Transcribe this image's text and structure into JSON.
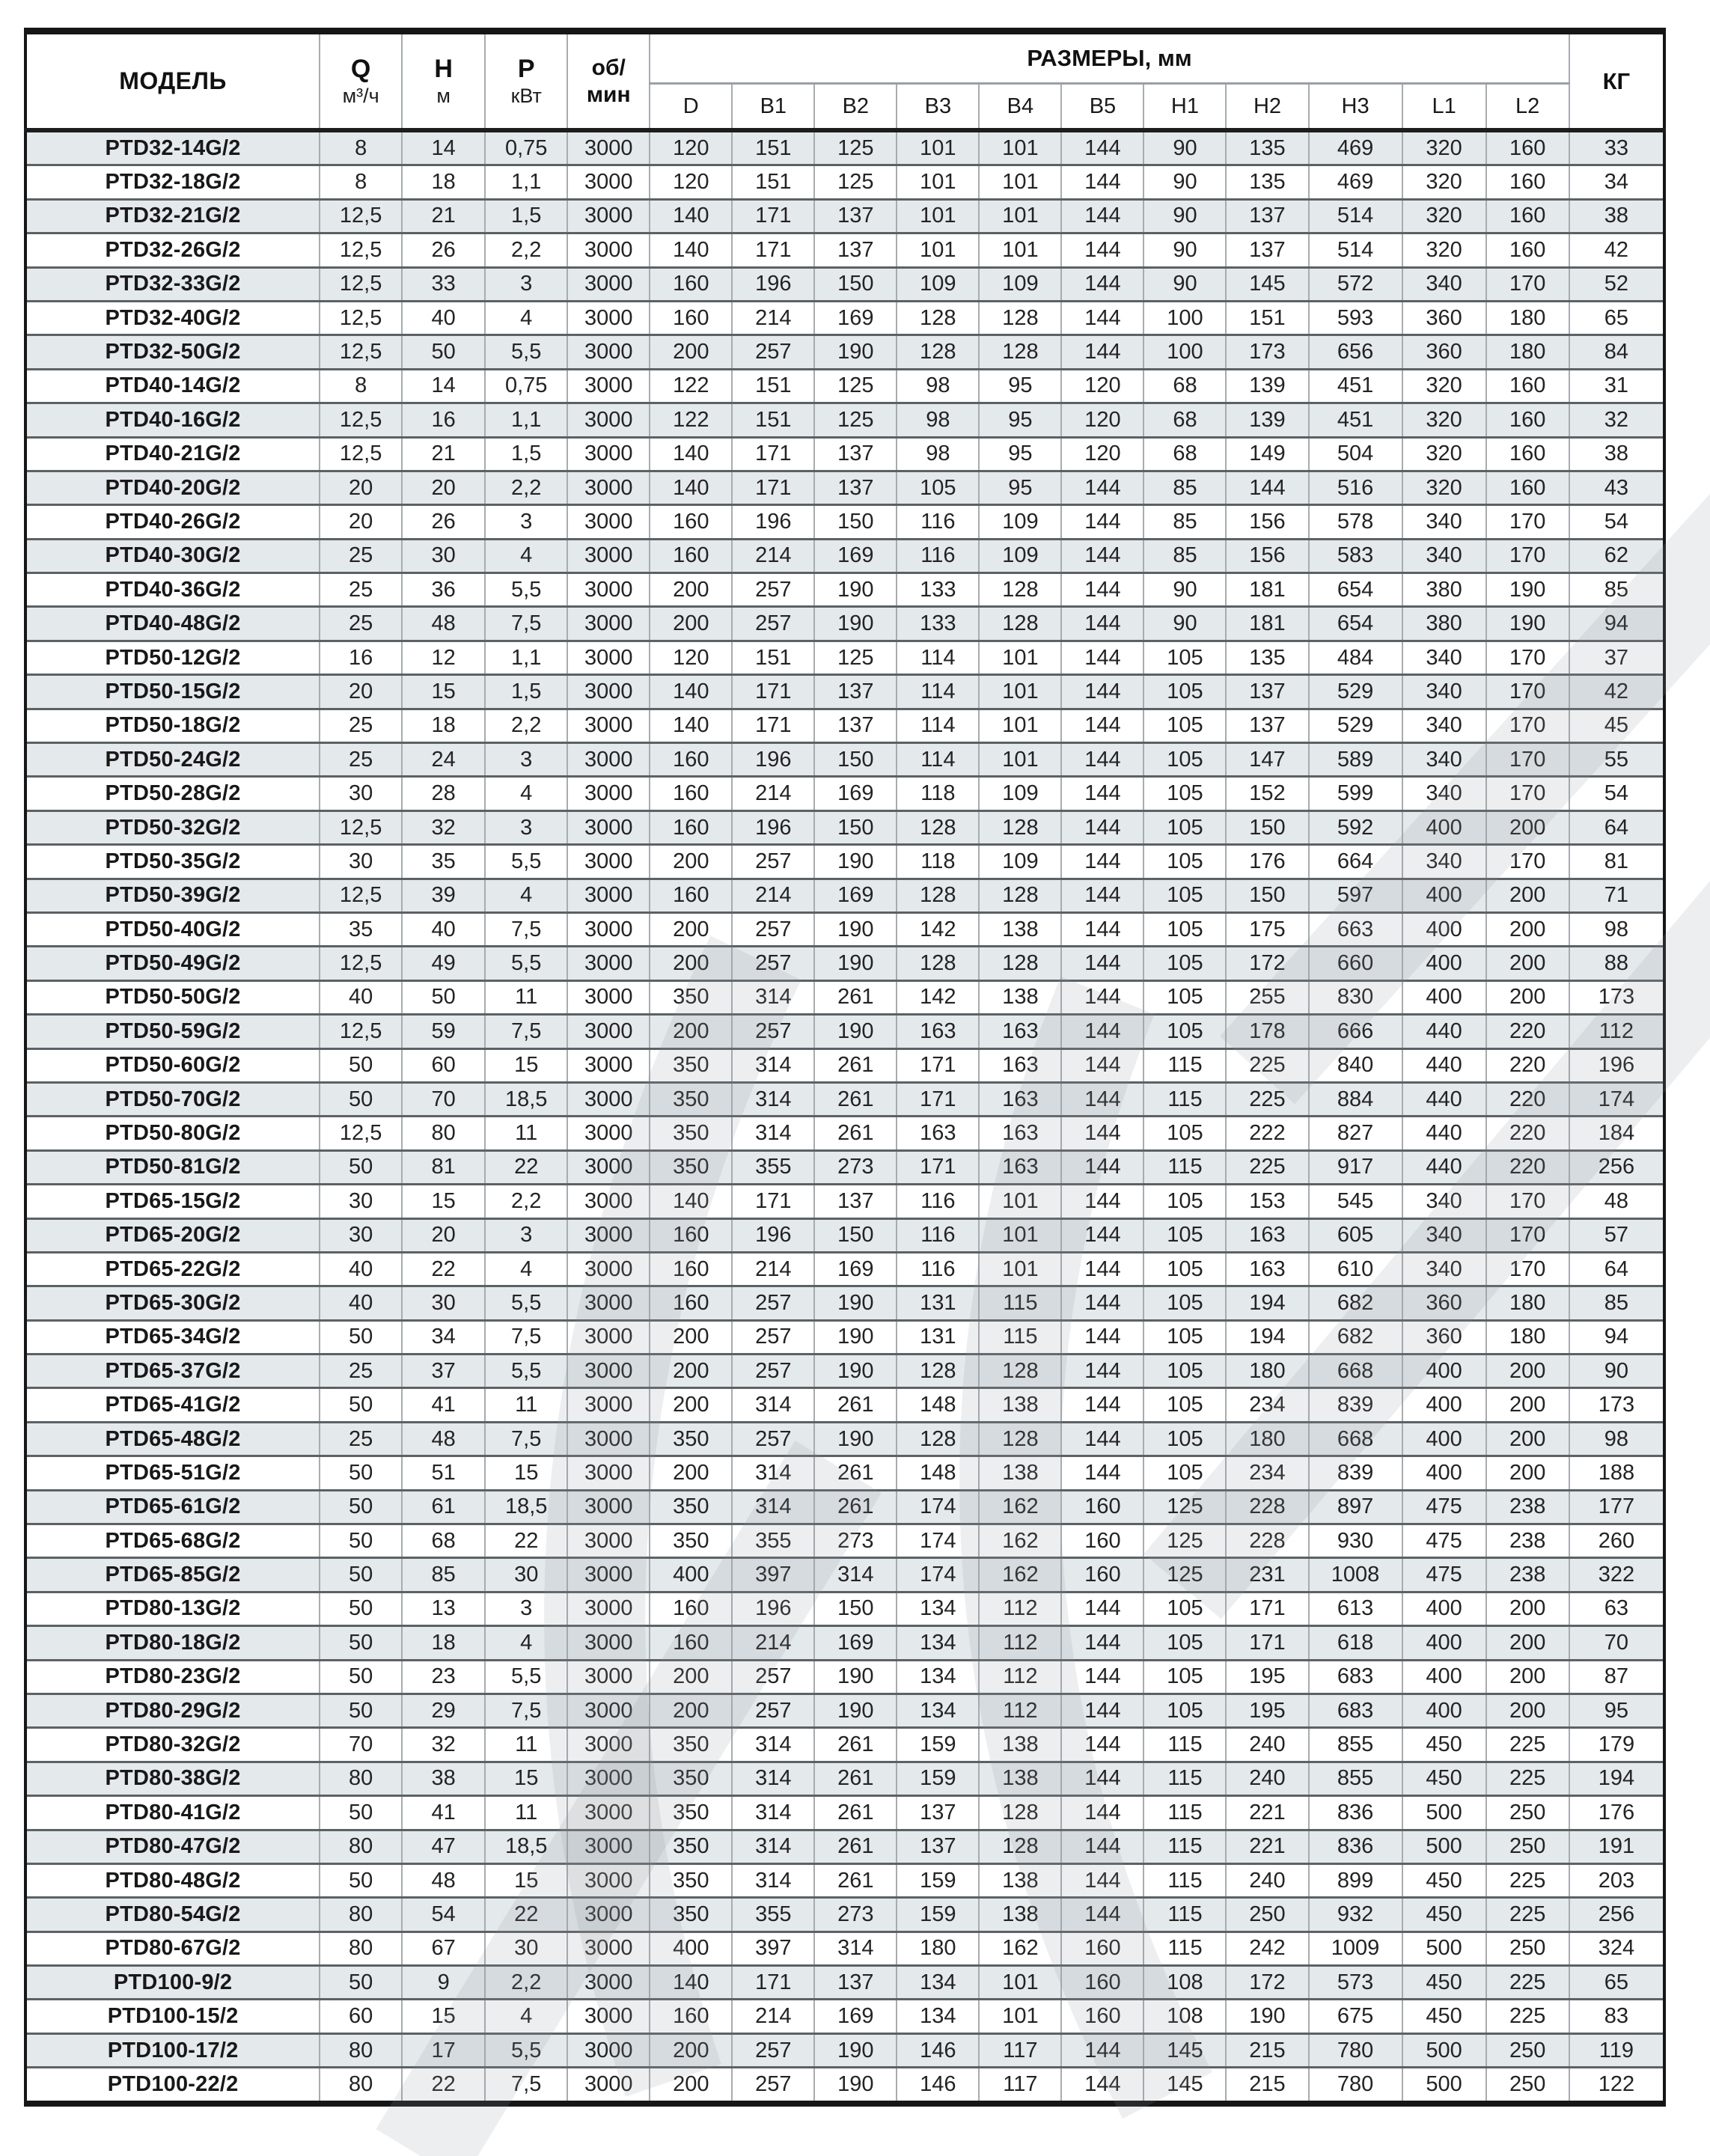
{
  "page": {
    "background": "#ffffff"
  },
  "colors": {
    "row_shade": "#e4e9ec",
    "row_white": "#ffffff",
    "grid_vertical": "#a6acb0",
    "grid_horizontal": "#5c6165",
    "outer_border": "#161616",
    "text": "#232323",
    "watermark": "#a7adb2"
  },
  "table": {
    "header": {
      "model": "МОДЕЛЬ",
      "q_symbol": "Q",
      "q_unit": "м³/ч",
      "h_symbol": "Н",
      "h_unit": "м",
      "p_symbol": "Р",
      "p_unit": "кВт",
      "rpm_line1": "об/",
      "rpm_line2": "мин",
      "sizes_group": "РАЗМЕРЫ, мм",
      "size_columns": [
        "D",
        "B1",
        "B2",
        "B3",
        "B4",
        "B5",
        "H1",
        "H2",
        "H3",
        "L1",
        "L2"
      ],
      "kg": "КГ"
    },
    "rows": [
      [
        "PTD32-14G/2",
        "8",
        "14",
        "0,75",
        "3000",
        "120",
        "151",
        "125",
        "101",
        "101",
        "144",
        "90",
        "135",
        "469",
        "320",
        "160",
        "33"
      ],
      [
        "PTD32-18G/2",
        "8",
        "18",
        "1,1",
        "3000",
        "120",
        "151",
        "125",
        "101",
        "101",
        "144",
        "90",
        "135",
        "469",
        "320",
        "160",
        "34"
      ],
      [
        "PTD32-21G/2",
        "12,5",
        "21",
        "1,5",
        "3000",
        "140",
        "171",
        "137",
        "101",
        "101",
        "144",
        "90",
        "137",
        "514",
        "320",
        "160",
        "38"
      ],
      [
        "PTD32-26G/2",
        "12,5",
        "26",
        "2,2",
        "3000",
        "140",
        "171",
        "137",
        "101",
        "101",
        "144",
        "90",
        "137",
        "514",
        "320",
        "160",
        "42"
      ],
      [
        "PTD32-33G/2",
        "12,5",
        "33",
        "3",
        "3000",
        "160",
        "196",
        "150",
        "109",
        "109",
        "144",
        "90",
        "145",
        "572",
        "340",
        "170",
        "52"
      ],
      [
        "PTD32-40G/2",
        "12,5",
        "40",
        "4",
        "3000",
        "160",
        "214",
        "169",
        "128",
        "128",
        "144",
        "100",
        "151",
        "593",
        "360",
        "180",
        "65"
      ],
      [
        "PTD32-50G/2",
        "12,5",
        "50",
        "5,5",
        "3000",
        "200",
        "257",
        "190",
        "128",
        "128",
        "144",
        "100",
        "173",
        "656",
        "360",
        "180",
        "84"
      ],
      [
        "PTD40-14G/2",
        "8",
        "14",
        "0,75",
        "3000",
        "122",
        "151",
        "125",
        "98",
        "95",
        "120",
        "68",
        "139",
        "451",
        "320",
        "160",
        "31"
      ],
      [
        "PTD40-16G/2",
        "12,5",
        "16",
        "1,1",
        "3000",
        "122",
        "151",
        "125",
        "98",
        "95",
        "120",
        "68",
        "139",
        "451",
        "320",
        "160",
        "32"
      ],
      [
        "PTD40-21G/2",
        "12,5",
        "21",
        "1,5",
        "3000",
        "140",
        "171",
        "137",
        "98",
        "95",
        "120",
        "68",
        "149",
        "504",
        "320",
        "160",
        "38"
      ],
      [
        "PTD40-20G/2",
        "20",
        "20",
        "2,2",
        "3000",
        "140",
        "171",
        "137",
        "105",
        "95",
        "144",
        "85",
        "144",
        "516",
        "320",
        "160",
        "43"
      ],
      [
        "PTD40-26G/2",
        "20",
        "26",
        "3",
        "3000",
        "160",
        "196",
        "150",
        "116",
        "109",
        "144",
        "85",
        "156",
        "578",
        "340",
        "170",
        "54"
      ],
      [
        "PTD40-30G/2",
        "25",
        "30",
        "4",
        "3000",
        "160",
        "214",
        "169",
        "116",
        "109",
        "144",
        "85",
        "156",
        "583",
        "340",
        "170",
        "62"
      ],
      [
        "PTD40-36G/2",
        "25",
        "36",
        "5,5",
        "3000",
        "200",
        "257",
        "190",
        "133",
        "128",
        "144",
        "90",
        "181",
        "654",
        "380",
        "190",
        "85"
      ],
      [
        "PTD40-48G/2",
        "25",
        "48",
        "7,5",
        "3000",
        "200",
        "257",
        "190",
        "133",
        "128",
        "144",
        "90",
        "181",
        "654",
        "380",
        "190",
        "94"
      ],
      [
        "PTD50-12G/2",
        "16",
        "12",
        "1,1",
        "3000",
        "120",
        "151",
        "125",
        "114",
        "101",
        "144",
        "105",
        "135",
        "484",
        "340",
        "170",
        "37"
      ],
      [
        "PTD50-15G/2",
        "20",
        "15",
        "1,5",
        "3000",
        "140",
        "171",
        "137",
        "114",
        "101",
        "144",
        "105",
        "137",
        "529",
        "340",
        "170",
        "42"
      ],
      [
        "PTD50-18G/2",
        "25",
        "18",
        "2,2",
        "3000",
        "140",
        "171",
        "137",
        "114",
        "101",
        "144",
        "105",
        "137",
        "529",
        "340",
        "170",
        "45"
      ],
      [
        "PTD50-24G/2",
        "25",
        "24",
        "3",
        "3000",
        "160",
        "196",
        "150",
        "114",
        "101",
        "144",
        "105",
        "147",
        "589",
        "340",
        "170",
        "55"
      ],
      [
        "PTD50-28G/2",
        "30",
        "28",
        "4",
        "3000",
        "160",
        "214",
        "169",
        "118",
        "109",
        "144",
        "105",
        "152",
        "599",
        "340",
        "170",
        "54"
      ],
      [
        "PTD50-32G/2",
        "12,5",
        "32",
        "3",
        "3000",
        "160",
        "196",
        "150",
        "128",
        "128",
        "144",
        "105",
        "150",
        "592",
        "400",
        "200",
        "64"
      ],
      [
        "PTD50-35G/2",
        "30",
        "35",
        "5,5",
        "3000",
        "200",
        "257",
        "190",
        "118",
        "109",
        "144",
        "105",
        "176",
        "664",
        "340",
        "170",
        "81"
      ],
      [
        "PTD50-39G/2",
        "12,5",
        "39",
        "4",
        "3000",
        "160",
        "214",
        "169",
        "128",
        "128",
        "144",
        "105",
        "150",
        "597",
        "400",
        "200",
        "71"
      ],
      [
        "PTD50-40G/2",
        "35",
        "40",
        "7,5",
        "3000",
        "200",
        "257",
        "190",
        "142",
        "138",
        "144",
        "105",
        "175",
        "663",
        "400",
        "200",
        "98"
      ],
      [
        "PTD50-49G/2",
        "12,5",
        "49",
        "5,5",
        "3000",
        "200",
        "257",
        "190",
        "128",
        "128",
        "144",
        "105",
        "172",
        "660",
        "400",
        "200",
        "88"
      ],
      [
        "PTD50-50G/2",
        "40",
        "50",
        "11",
        "3000",
        "350",
        "314",
        "261",
        "142",
        "138",
        "144",
        "105",
        "255",
        "830",
        "400",
        "200",
        "173"
      ],
      [
        "PTD50-59G/2",
        "12,5",
        "59",
        "7,5",
        "3000",
        "200",
        "257",
        "190",
        "163",
        "163",
        "144",
        "105",
        "178",
        "666",
        "440",
        "220",
        "112"
      ],
      [
        "PTD50-60G/2",
        "50",
        "60",
        "15",
        "3000",
        "350",
        "314",
        "261",
        "171",
        "163",
        "144",
        "115",
        "225",
        "840",
        "440",
        "220",
        "196"
      ],
      [
        "PTD50-70G/2",
        "50",
        "70",
        "18,5",
        "3000",
        "350",
        "314",
        "261",
        "171",
        "163",
        "144",
        "115",
        "225",
        "884",
        "440",
        "220",
        "174"
      ],
      [
        "PTD50-80G/2",
        "12,5",
        "80",
        "11",
        "3000",
        "350",
        "314",
        "261",
        "163",
        "163",
        "144",
        "105",
        "222",
        "827",
        "440",
        "220",
        "184"
      ],
      [
        "PTD50-81G/2",
        "50",
        "81",
        "22",
        "3000",
        "350",
        "355",
        "273",
        "171",
        "163",
        "144",
        "115",
        "225",
        "917",
        "440",
        "220",
        "256"
      ],
      [
        "PTD65-15G/2",
        "30",
        "15",
        "2,2",
        "3000",
        "140",
        "171",
        "137",
        "116",
        "101",
        "144",
        "105",
        "153",
        "545",
        "340",
        "170",
        "48"
      ],
      [
        "PTD65-20G/2",
        "30",
        "20",
        "3",
        "3000",
        "160",
        "196",
        "150",
        "116",
        "101",
        "144",
        "105",
        "163",
        "605",
        "340",
        "170",
        "57"
      ],
      [
        "PTD65-22G/2",
        "40",
        "22",
        "4",
        "3000",
        "160",
        "214",
        "169",
        "116",
        "101",
        "144",
        "105",
        "163",
        "610",
        "340",
        "170",
        "64"
      ],
      [
        "PTD65-30G/2",
        "40",
        "30",
        "5,5",
        "3000",
        "160",
        "257",
        "190",
        "131",
        "115",
        "144",
        "105",
        "194",
        "682",
        "360",
        "180",
        "85"
      ],
      [
        "PTD65-34G/2",
        "50",
        "34",
        "7,5",
        "3000",
        "200",
        "257",
        "190",
        "131",
        "115",
        "144",
        "105",
        "194",
        "682",
        "360",
        "180",
        "94"
      ],
      [
        "PTD65-37G/2",
        "25",
        "37",
        "5,5",
        "3000",
        "200",
        "257",
        "190",
        "128",
        "128",
        "144",
        "105",
        "180",
        "668",
        "400",
        "200",
        "90"
      ],
      [
        "PTD65-41G/2",
        "50",
        "41",
        "11",
        "3000",
        "200",
        "314",
        "261",
        "148",
        "138",
        "144",
        "105",
        "234",
        "839",
        "400",
        "200",
        "173"
      ],
      [
        "PTD65-48G/2",
        "25",
        "48",
        "7,5",
        "3000",
        "350",
        "257",
        "190",
        "128",
        "128",
        "144",
        "105",
        "180",
        "668",
        "400",
        "200",
        "98"
      ],
      [
        "PTD65-51G/2",
        "50",
        "51",
        "15",
        "3000",
        "200",
        "314",
        "261",
        "148",
        "138",
        "144",
        "105",
        "234",
        "839",
        "400",
        "200",
        "188"
      ],
      [
        "PTD65-61G/2",
        "50",
        "61",
        "18,5",
        "3000",
        "350",
        "314",
        "261",
        "174",
        "162",
        "160",
        "125",
        "228",
        "897",
        "475",
        "238",
        "177"
      ],
      [
        "PTD65-68G/2",
        "50",
        "68",
        "22",
        "3000",
        "350",
        "355",
        "273",
        "174",
        "162",
        "160",
        "125",
        "228",
        "930",
        "475",
        "238",
        "260"
      ],
      [
        "PTD65-85G/2",
        "50",
        "85",
        "30",
        "3000",
        "400",
        "397",
        "314",
        "174",
        "162",
        "160",
        "125",
        "231",
        "1008",
        "475",
        "238",
        "322"
      ],
      [
        "PTD80-13G/2",
        "50",
        "13",
        "3",
        "3000",
        "160",
        "196",
        "150",
        "134",
        "112",
        "144",
        "105",
        "171",
        "613",
        "400",
        "200",
        "63"
      ],
      [
        "PTD80-18G/2",
        "50",
        "18",
        "4",
        "3000",
        "160",
        "214",
        "169",
        "134",
        "112",
        "144",
        "105",
        "171",
        "618",
        "400",
        "200",
        "70"
      ],
      [
        "PTD80-23G/2",
        "50",
        "23",
        "5,5",
        "3000",
        "200",
        "257",
        "190",
        "134",
        "112",
        "144",
        "105",
        "195",
        "683",
        "400",
        "200",
        "87"
      ],
      [
        "PTD80-29G/2",
        "50",
        "29",
        "7,5",
        "3000",
        "200",
        "257",
        "190",
        "134",
        "112",
        "144",
        "105",
        "195",
        "683",
        "400",
        "200",
        "95"
      ],
      [
        "PTD80-32G/2",
        "70",
        "32",
        "11",
        "3000",
        "350",
        "314",
        "261",
        "159",
        "138",
        "144",
        "115",
        "240",
        "855",
        "450",
        "225",
        "179"
      ],
      [
        "PTD80-38G/2",
        "80",
        "38",
        "15",
        "3000",
        "350",
        "314",
        "261",
        "159",
        "138",
        "144",
        "115",
        "240",
        "855",
        "450",
        "225",
        "194"
      ],
      [
        "PTD80-41G/2",
        "50",
        "41",
        "11",
        "3000",
        "350",
        "314",
        "261",
        "137",
        "128",
        "144",
        "115",
        "221",
        "836",
        "500",
        "250",
        "176"
      ],
      [
        "PTD80-47G/2",
        "80",
        "47",
        "18,5",
        "3000",
        "350",
        "314",
        "261",
        "137",
        "128",
        "144",
        "115",
        "221",
        "836",
        "500",
        "250",
        "191"
      ],
      [
        "PTD80-48G/2",
        "50",
        "48",
        "15",
        "3000",
        "350",
        "314",
        "261",
        "159",
        "138",
        "144",
        "115",
        "240",
        "899",
        "450",
        "225",
        "203"
      ],
      [
        "PTD80-54G/2",
        "80",
        "54",
        "22",
        "3000",
        "350",
        "355",
        "273",
        "159",
        "138",
        "144",
        "115",
        "250",
        "932",
        "450",
        "225",
        "256"
      ],
      [
        "PTD80-67G/2",
        "80",
        "67",
        "30",
        "3000",
        "400",
        "397",
        "314",
        "180",
        "162",
        "160",
        "115",
        "242",
        "1009",
        "500",
        "250",
        "324"
      ],
      [
        "PTD100-9/2",
        "50",
        "9",
        "2,2",
        "3000",
        "140",
        "171",
        "137",
        "134",
        "101",
        "160",
        "108",
        "172",
        "573",
        "450",
        "225",
        "65"
      ],
      [
        "PTD100-15/2",
        "60",
        "15",
        "4",
        "3000",
        "160",
        "214",
        "169",
        "134",
        "101",
        "160",
        "108",
        "190",
        "675",
        "450",
        "225",
        "83"
      ],
      [
        "PTD100-17/2",
        "80",
        "17",
        "5,5",
        "3000",
        "200",
        "257",
        "190",
        "146",
        "117",
        "144",
        "145",
        "215",
        "780",
        "500",
        "250",
        "119"
      ],
      [
        "PTD100-22/2",
        "80",
        "22",
        "7,5",
        "3000",
        "200",
        "257",
        "190",
        "146",
        "117",
        "144",
        "145",
        "215",
        "780",
        "500",
        "250",
        "122"
      ]
    ]
  }
}
